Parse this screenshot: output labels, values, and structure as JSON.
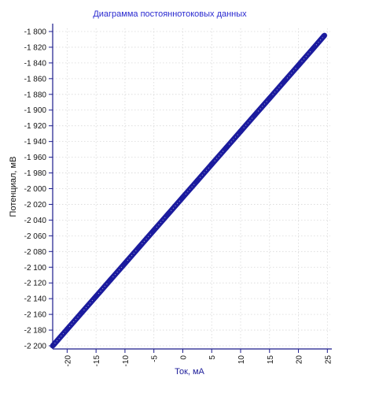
{
  "chart_data": {
    "type": "scatter",
    "title": "Диаграмма постояннотоковых данных",
    "xlabel": "Ток, мА",
    "ylabel": "Потенциал, мВ",
    "xlim": [
      -22.5,
      25.5
    ],
    "ylim": [
      -2204,
      -1796
    ],
    "xticks": [
      -20,
      -15,
      -10,
      -5,
      0,
      5,
      10,
      15,
      20,
      25
    ],
    "xtick_labels": [
      "-20",
      "-15",
      "-10",
      "-5",
      "0",
      "5",
      "10",
      "15",
      "20",
      "25"
    ],
    "yticks": [
      -1800,
      -1820,
      -1840,
      -1860,
      -1880,
      -1900,
      -1920,
      -1940,
      -1960,
      -1980,
      -2000,
      -2020,
      -2040,
      -2060,
      -2080,
      -2100,
      -2120,
      -2140,
      -2160,
      -2180,
      -2200
    ],
    "ytick_labels": [
      "-1 800",
      "-1 820",
      "-1 840",
      "-1 860",
      "-1 880",
      "-1 900",
      "-1 920",
      "-1 940",
      "-1 960",
      "-1 980",
      "-2 000",
      "-2 020",
      "-2 040",
      "-2 060",
      "-2 080",
      "-2 100",
      "-2 120",
      "-2 140",
      "-2 160",
      "-2 180",
      "-2 200"
    ],
    "grid": true,
    "series": [
      {
        "color": "#1b1b9e",
        "x": [
          -22.5,
          -20,
          -17.5,
          -15,
          -12.5,
          -10,
          -7.5,
          -5,
          -2.5,
          0,
          2.5,
          5,
          7.5,
          10,
          12.5,
          15,
          17.5,
          20,
          22.5,
          24.5
        ],
        "y": [
          -2200,
          -2179,
          -2158,
          -2137,
          -2116,
          -2095,
          -2074,
          -2053,
          -2032,
          -2011,
          -1990,
          -1969,
          -1948,
          -1927,
          -1906,
          -1885,
          -1864,
          -1843,
          -1822,
          -1805
        ]
      }
    ]
  }
}
